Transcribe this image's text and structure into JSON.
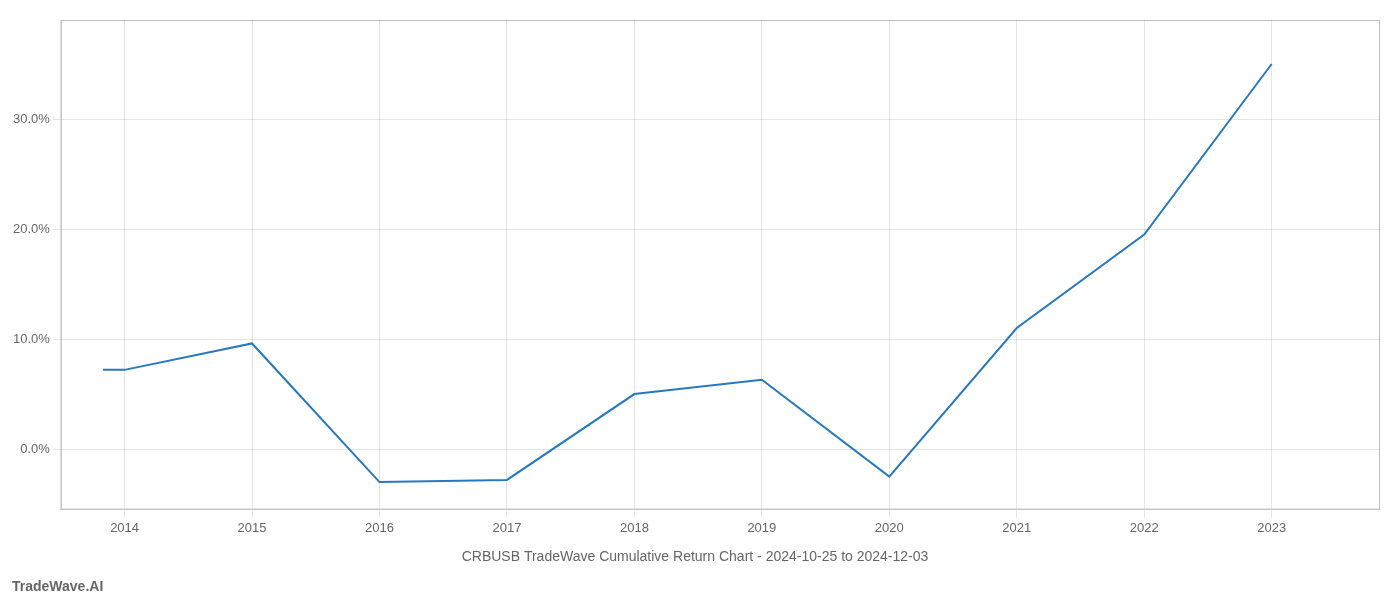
{
  "chart_data": {
    "type": "line",
    "title": "CRBUSB TradeWave Cumulative Return Chart - 2024-10-25 to 2024-12-03",
    "annotations": [
      "TradeWave.AI"
    ],
    "x": [
      2013.83,
      2014.0,
      2015.0,
      2016.0,
      2017.0,
      2018.0,
      2019.0,
      2020.0,
      2021.0,
      2022.0,
      2023.0
    ],
    "values": [
      7.2,
      7.2,
      9.6,
      -3.0,
      -2.8,
      5.0,
      6.3,
      -2.5,
      11.0,
      19.5,
      35.0
    ],
    "color": "#2878be",
    "xlim": [
      2013.5,
      2023.85
    ],
    "xticks": [
      2014,
      2015,
      2016,
      2017,
      2018,
      2019,
      2020,
      2021,
      2022,
      2023
    ],
    "ylim": [
      -5.5,
      39.0
    ],
    "yticks": [
      {
        "value": 0.0,
        "label": "0.0%"
      },
      {
        "value": 10.0,
        "label": "10.0%"
      },
      {
        "value": 20.0,
        "label": "20.0%"
      },
      {
        "value": 30.0,
        "label": "30.0%"
      }
    ],
    "grid": true
  }
}
